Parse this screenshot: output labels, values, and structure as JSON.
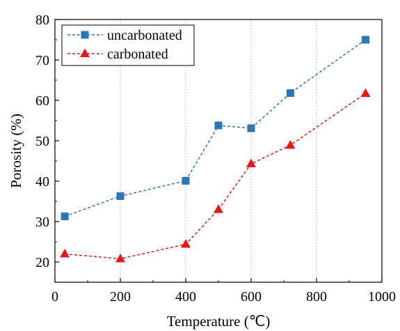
{
  "chart_data": {
    "type": "line",
    "xlabel": "Temperature (℃)",
    "ylabel": "Porosity (%)",
    "xlim": [
      0,
      1000
    ],
    "ylim": [
      15,
      80
    ],
    "xticks": [
      0,
      200,
      400,
      600,
      800,
      1000
    ],
    "yticks": [
      20,
      30,
      40,
      50,
      60,
      70,
      80
    ],
    "grid": "vertical dotted",
    "legend_position": "top-left",
    "series": [
      {
        "name": "uncarbonated",
        "color": "#2e75b6",
        "marker": "square",
        "line_style": "dashed",
        "x": [
          30,
          200,
          400,
          500,
          600,
          720,
          950
        ],
        "y": [
          31.3,
          36.3,
          40.1,
          53.8,
          53.1,
          61.8,
          75.0
        ]
      },
      {
        "name": "carbonated",
        "color": "#e3191c",
        "marker": "triangle",
        "line_style": "dashed",
        "x": [
          30,
          200,
          400,
          500,
          600,
          720,
          950
        ],
        "y": [
          22.0,
          20.8,
          24.4,
          33.0,
          44.3,
          48.9,
          61.7
        ]
      }
    ]
  }
}
